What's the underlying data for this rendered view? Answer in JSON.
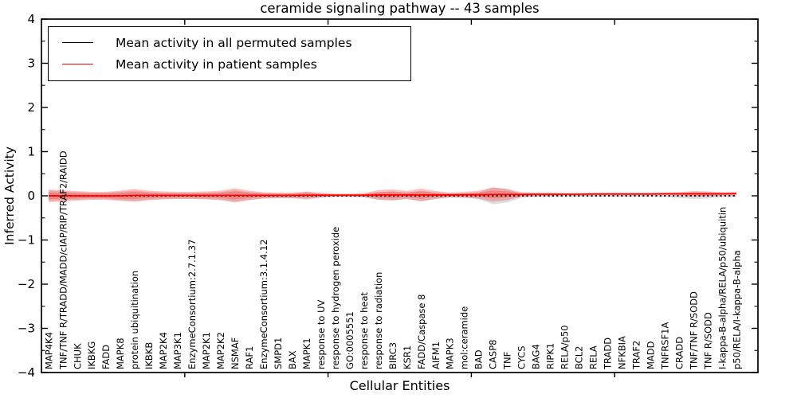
{
  "figure": {
    "title": "ceramide signaling pathway -- 43 samples",
    "xlabel": "Cellular Entities",
    "ylabel": "Inferred Activity"
  },
  "legend": {
    "items": [
      {
        "label": "Mean activity in all permuted samples",
        "color": "#000000"
      },
      {
        "label": "Mean activity in patient samples",
        "color": "#ff0000"
      }
    ]
  },
  "chart_data": {
    "type": "line",
    "title": "ceramide signaling pathway -- 43 samples",
    "xlabel": "Cellular Entities",
    "ylabel": "Inferred Activity",
    "xlim": [
      0,
      50
    ],
    "ylim": [
      -4,
      4
    ],
    "grid": false,
    "legend_position": "upper left",
    "y_tick_labels": [
      "4",
      "3",
      "2",
      "1",
      "0",
      "−1",
      "−2",
      "−3",
      "−4"
    ],
    "y_tick_values": [
      4,
      3,
      2,
      1,
      0,
      -1,
      -2,
      -3,
      -4
    ],
    "y_minor_tick_values": [
      3.5,
      2.5,
      1.5,
      0.5,
      -0.5,
      -1.5,
      -2.5,
      -3.5
    ],
    "x_major_tick_values": [
      10,
      20,
      30,
      40
    ],
    "categories": [
      "MAP4K4",
      "TNF/TNF R/TRADD/MADD/cIAP/RIP/TRAF2/RAIDD",
      "CHUK",
      "IKBKG",
      "FADD",
      "MAPK8",
      "protein ubiquitination",
      "IKBKB",
      "MAP2K4",
      "MAP3K1",
      "EnzymeConsortium:2.7.1.37",
      "MAP2K1",
      "MAP2K2",
      "NSMAF",
      "RAF1",
      "EnzymeConsortium:3.1.4.12",
      "SMPD1",
      "BAX",
      "MAPK1",
      "response to UV",
      "response to hydrogen peroxide",
      "GO:0005551",
      "response to heat",
      "response to radiation",
      "BIRC3",
      "KSR1",
      "FADD/Caspase 8",
      "AIFM1",
      "MAPK3",
      "mol:ceramide",
      "BAD",
      "CASP8",
      "TNF",
      "CYCS",
      "BAG4",
      "RIPK1",
      "RELA/p50",
      "BCL2",
      "RELA",
      "TRADD",
      "NFKBIA",
      "TRAF2",
      "MADD",
      "TNFRSF1A",
      "CRADD",
      "TNF/TNF R/SODD",
      "TNF R/SODD",
      "I-kappa-B-alpha/RELA/p50/ubiquitin",
      "p50/RELA/I-kappa-B-alpha"
    ],
    "series": [
      {
        "name": "Mean activity in all permuted samples",
        "color": "#000000",
        "style": "dotted",
        "values": [
          0,
          0,
          0,
          0,
          0,
          0,
          0,
          0,
          0,
          0,
          0,
          0,
          0,
          0,
          0,
          0,
          0,
          0,
          0,
          0,
          0,
          0,
          0,
          0,
          0,
          0,
          0,
          0,
          0,
          0,
          0,
          0,
          0,
          0,
          0,
          0,
          0,
          0,
          0,
          0,
          0,
          0,
          0,
          0,
          0,
          0,
          0,
          0,
          0
        ]
      },
      {
        "name": "Mean activity in patient samples",
        "color": "#ff0000",
        "style": "solid",
        "values": [
          0,
          0,
          0,
          0,
          0,
          0,
          0.01,
          0.01,
          0.01,
          0.01,
          0.01,
          0.01,
          0.01,
          0.01,
          0.01,
          0.01,
          0.01,
          0.01,
          0.015,
          0.015,
          0.015,
          0.015,
          0.015,
          0.02,
          0.02,
          0.02,
          0.02,
          0.02,
          0.02,
          0.025,
          0.025,
          0.03,
          0.03,
          0.03,
          0.035,
          0.035,
          0.035,
          0.035,
          0.04,
          0.04,
          0.04,
          0.04,
          0.04,
          0.045,
          0.045,
          0.045,
          0.045,
          0.045,
          0.05
        ]
      }
    ],
    "bands": [
      {
        "name": "permuted-band",
        "center_series": 0,
        "color": "rgba(70,70,70,0.18)",
        "half_widths": [
          0.116,
          0.101,
          0.086,
          0.072,
          0.072,
          0.094,
          0.116,
          0.086,
          0.072,
          0.065,
          0.065,
          0.072,
          0.086,
          0.13,
          0.086,
          0.058,
          0.05,
          0.05,
          0.09,
          0.043,
          0.029,
          0.029,
          0.036,
          0.086,
          0.101,
          0.072,
          0.116,
          0.072,
          0.043,
          0.05,
          0.072,
          0.19,
          0.15,
          0.043,
          0.029,
          0.029,
          0.022,
          0.022,
          0.022,
          0.022,
          0.022,
          0.022,
          0.022,
          0.022,
          0.05,
          0.07,
          0.06,
          0.029,
          0.029
        ]
      },
      {
        "name": "patient-band",
        "center_series": 1,
        "color": "rgba(255,45,45,0.30)",
        "inner_ratio": 0.55,
        "half_widths": [
          0.145,
          0.126,
          0.108,
          0.09,
          0.09,
          0.117,
          0.145,
          0.108,
          0.09,
          0.081,
          0.081,
          0.09,
          0.108,
          0.162,
          0.108,
          0.072,
          0.063,
          0.063,
          0.081,
          0.054,
          0.036,
          0.036,
          0.045,
          0.108,
          0.126,
          0.09,
          0.145,
          0.09,
          0.054,
          0.063,
          0.09,
          0.162,
          0.126,
          0.054,
          0.036,
          0.036,
          0.027,
          0.027,
          0.027,
          0.027,
          0.027,
          0.027,
          0.027,
          0.027,
          0.036,
          0.063,
          0.054,
          0.036,
          0.036
        ]
      }
    ]
  }
}
